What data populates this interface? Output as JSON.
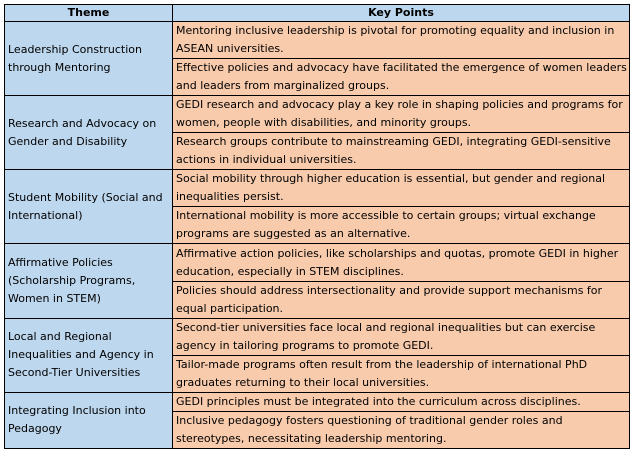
{
  "headers": {
    "theme": "Theme",
    "key_points": "Key Points"
  },
  "rows": [
    {
      "theme": "Leadership Construction through Mentoring",
      "points": [
        "Mentoring inclusive leadership is pivotal for promoting equality and inclusion in ASEAN universities.",
        "Effective policies and advocacy have facilitated the emergence of women leaders and leaders from marginalized groups."
      ]
    },
    {
      "theme": "Research and Advocacy on Gender and Disability",
      "points": [
        "GEDI research and advocacy play a key role in shaping policies and programs for women, people with disabilities, and minority groups.",
        "Research groups contribute to mainstreaming GEDI, integrating GEDI-sensitive actions in individual universities."
      ]
    },
    {
      "theme": "Student Mobility (Social and International)",
      "points": [
        "Social mobility through higher education is essential, but gender and regional inequalities persist.",
        "International mobility is more accessible to certain groups; virtual exchange programs are suggested as an alternative."
      ]
    },
    {
      "theme": "Affirmative Policies (Scholarship Programs, Women in STEM)",
      "points": [
        "Affirmative action policies, like scholarships and quotas, promote GEDI in higher education, especially in STEM disciplines.",
        "Policies should address intersectionality and provide support mechanisms for equal participation."
      ]
    },
    {
      "theme": "Local and Regional Inequalities and Agency in Second-Tier Universities",
      "points": [
        "Second-tier universities face local and regional inequalities but can exercise agency in tailoring programs to promote GEDI.",
        "Tailor-made programs often result from the leadership of international PhD graduates returning to their local universities."
      ]
    },
    {
      "theme": "Integrating Inclusion into Pedagogy",
      "points": [
        "GEDI principles must be integrated into the curriculum across disciplines.",
        "Inclusive pedagogy fosters questioning of traditional gender roles and stereotypes, necessitating leadership mentoring."
      ]
    }
  ]
}
